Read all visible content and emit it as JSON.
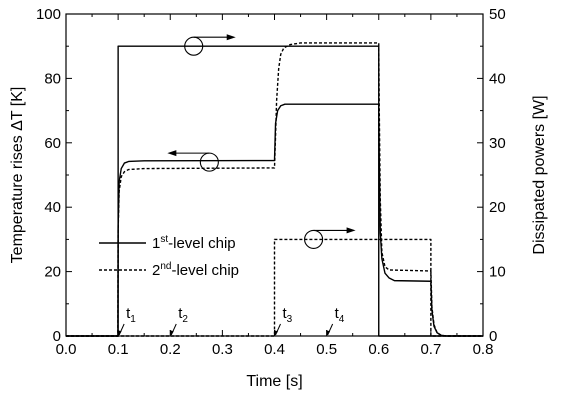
{
  "chart_data": {
    "type": "line",
    "xlabel": "Time [s]",
    "ylabel_left": "Temperature rises ΔT [K]",
    "ylabel_right": "Dissipated powers [W]",
    "xlim": [
      0.0,
      0.8
    ],
    "ylim_left": [
      0,
      100
    ],
    "ylim_right": [
      0,
      50
    ],
    "x_ticks": [
      "0.0",
      "0.1",
      "0.2",
      "0.3",
      "0.4",
      "0.5",
      "0.6",
      "0.7",
      "0.8"
    ],
    "y_ticks_left": [
      "0",
      "20",
      "40",
      "60",
      "80",
      "100"
    ],
    "y_ticks_right": [
      "0",
      "10",
      "20",
      "30",
      "40",
      "50"
    ],
    "grid": false,
    "legend": {
      "placement": "center-left",
      "entries": [
        {
          "base": "1",
          "sup": "st",
          "rest": "-level chip",
          "style": "solid"
        },
        {
          "base": "2",
          "sup": "nd",
          "rest": "-level chip",
          "style": "dashed"
        }
      ]
    },
    "series": [
      {
        "chip": "1st",
        "quantity": "temperature",
        "axis": "left",
        "style": "solid",
        "points": [
          [
            0,
            0
          ],
          [
            0.0995,
            0
          ],
          [
            0.1,
            34
          ],
          [
            0.102,
            48
          ],
          [
            0.106,
            52
          ],
          [
            0.112,
            53.7
          ],
          [
            0.12,
            54.2
          ],
          [
            0.15,
            54.4
          ],
          [
            0.4,
            54.5
          ],
          [
            0.402,
            66
          ],
          [
            0.406,
            70
          ],
          [
            0.412,
            71.5
          ],
          [
            0.42,
            72
          ],
          [
            0.6,
            72
          ],
          [
            0.601,
            55
          ],
          [
            0.603,
            32
          ],
          [
            0.606,
            24
          ],
          [
            0.612,
            19.5
          ],
          [
            0.62,
            18
          ],
          [
            0.63,
            17.2
          ],
          [
            0.7,
            17
          ],
          [
            0.702,
            8
          ],
          [
            0.706,
            3
          ],
          [
            0.712,
            1
          ],
          [
            0.72,
            0.2
          ],
          [
            0.73,
            0
          ],
          [
            0.8,
            0
          ]
        ]
      },
      {
        "chip": "2nd",
        "quantity": "temperature",
        "axis": "left",
        "style": "dashed",
        "points": [
          [
            0,
            0
          ],
          [
            0.0995,
            0
          ],
          [
            0.1,
            33
          ],
          [
            0.102,
            45
          ],
          [
            0.106,
            49.5
          ],
          [
            0.112,
            51
          ],
          [
            0.12,
            51.7
          ],
          [
            0.15,
            52
          ],
          [
            0.4,
            52.2
          ],
          [
            0.402,
            62
          ],
          [
            0.404,
            73
          ],
          [
            0.408,
            83
          ],
          [
            0.412,
            87.5
          ],
          [
            0.418,
            89.5
          ],
          [
            0.43,
            90.5
          ],
          [
            0.45,
            91
          ],
          [
            0.6,
            91
          ],
          [
            0.601,
            70
          ],
          [
            0.603,
            42
          ],
          [
            0.606,
            26
          ],
          [
            0.612,
            21.5
          ],
          [
            0.62,
            20.5
          ],
          [
            0.7,
            20.2
          ],
          [
            0.702,
            9
          ],
          [
            0.706,
            3.5
          ],
          [
            0.712,
            1
          ],
          [
            0.72,
            0.2
          ],
          [
            0.73,
            0
          ],
          [
            0.8,
            0
          ]
        ]
      },
      {
        "chip": "1st",
        "quantity": "power",
        "axis": "right",
        "style": "solid",
        "points": [
          [
            0,
            0
          ],
          [
            0.1,
            0
          ],
          [
            0.1,
            45
          ],
          [
            0.6,
            45
          ],
          [
            0.6,
            0
          ],
          [
            0.8,
            0
          ]
        ]
      },
      {
        "chip": "2nd",
        "quantity": "power",
        "axis": "right",
        "style": "dashed",
        "points": [
          [
            0,
            0
          ],
          [
            0.4,
            0
          ],
          [
            0.4,
            15
          ],
          [
            0.7,
            15
          ],
          [
            0.7,
            0
          ],
          [
            0.8,
            0
          ]
        ]
      }
    ],
    "annotations": {
      "time_markers": [
        {
          "base": "t",
          "sub": "1",
          "x": 0.1
        },
        {
          "base": "t",
          "sub": "2",
          "x": 0.2
        },
        {
          "base": "t",
          "sub": "3",
          "x": 0.4
        },
        {
          "base": "t",
          "sub": "4",
          "x": 0.5
        }
      ],
      "axis_circles": [
        {
          "x": 0.245,
          "y": 90,
          "points_to": "right-axis"
        },
        {
          "x": 0.275,
          "y": 54,
          "points_to": "left-axis"
        },
        {
          "x": 0.475,
          "y": 30,
          "points_to": "right-axis"
        }
      ]
    }
  }
}
